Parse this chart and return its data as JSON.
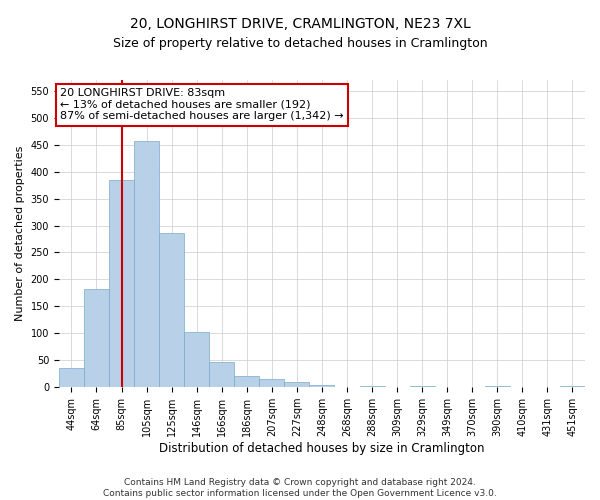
{
  "title": "20, LONGHIRST DRIVE, CRAMLINGTON, NE23 7XL",
  "subtitle": "Size of property relative to detached houses in Cramlington",
  "xlabel": "Distribution of detached houses by size in Cramlington",
  "ylabel": "Number of detached properties",
  "categories": [
    "44sqm",
    "64sqm",
    "85sqm",
    "105sqm",
    "125sqm",
    "146sqm",
    "166sqm",
    "186sqm",
    "207sqm",
    "227sqm",
    "248sqm",
    "268sqm",
    "288sqm",
    "309sqm",
    "329sqm",
    "349sqm",
    "370sqm",
    "390sqm",
    "410sqm",
    "431sqm",
    "451sqm"
  ],
  "values": [
    35,
    183,
    385,
    457,
    287,
    103,
    47,
    20,
    15,
    10,
    5,
    0,
    3,
    0,
    3,
    0,
    0,
    2,
    0,
    0,
    3
  ],
  "bar_color": "#b8d0e8",
  "bar_edge_color": "#7aaac8",
  "vline_x": 2.0,
  "vline_color": "#cc0000",
  "annotation_line1": "20 LONGHIRST DRIVE: 83sqm",
  "annotation_line2": "← 13% of detached houses are smaller (192)",
  "annotation_line3": "87% of semi-detached houses are larger (1,342) →",
  "annotation_box_color": "#ffffff",
  "annotation_box_edge": "#cc0000",
  "ylim": [
    0,
    570
  ],
  "yticks": [
    0,
    50,
    100,
    150,
    200,
    250,
    300,
    350,
    400,
    450,
    500,
    550
  ],
  "footer": "Contains HM Land Registry data © Crown copyright and database right 2024.\nContains public sector information licensed under the Open Government Licence v3.0.",
  "bg_color": "#ffffff",
  "grid_color": "#cccccc",
  "title_fontsize": 10,
  "subtitle_fontsize": 9,
  "tick_fontsize": 7,
  "ylabel_fontsize": 8,
  "xlabel_fontsize": 8.5,
  "footer_fontsize": 6.5,
  "annotation_fontsize": 8
}
